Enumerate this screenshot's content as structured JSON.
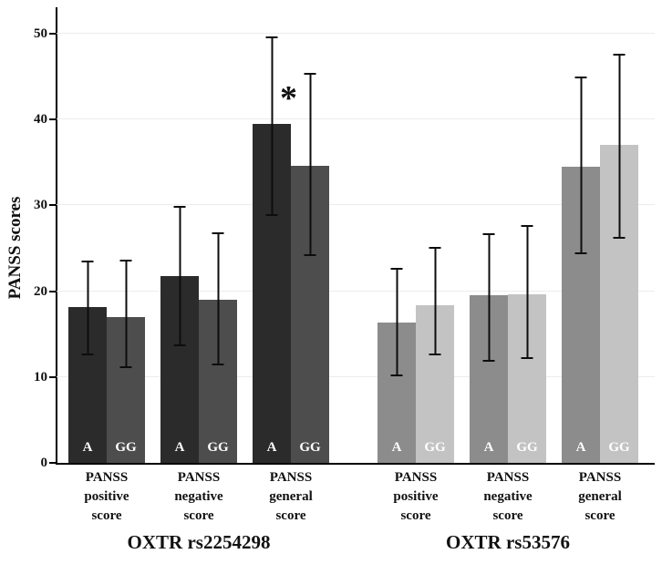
{
  "chart_data": {
    "type": "bar",
    "title": "",
    "ylabel": "PANSS scores",
    "ylim": [
      0,
      50
    ],
    "yticks": [
      0,
      10,
      20,
      30,
      40,
      50
    ],
    "grid": "faint-horizontal",
    "legend_position": "none",
    "bar_unit": "mean PANSS score with error bars, alleles labeled inside bars",
    "groups": [
      {
        "label": "OXTR rs2254298",
        "categories": [
          {
            "label": "PANSS positive score",
            "lines": [
              "PANSS",
              "positive",
              "score"
            ]
          },
          {
            "label": "PANSS negative score",
            "lines": [
              "PANSS",
              "negative",
              "score"
            ]
          },
          {
            "label": "PANSS general score",
            "lines": [
              "PANSS",
              "general",
              "score"
            ]
          }
        ],
        "series": [
          {
            "name": "A",
            "color": "#2b2b2b",
            "values": [
              18.2,
              21.8,
              39.5
            ],
            "err_low": [
              12.5,
              13.6,
              28.8
            ],
            "err_high": [
              23.6,
              29.9,
              49.7
            ]
          },
          {
            "name": "GG",
            "color": "#4d4d4d",
            "values": [
              17.0,
              19.0,
              34.6
            ],
            "err_low": [
              11.0,
              11.4,
              24.1
            ],
            "err_high": [
              23.7,
              26.9,
              45.4
            ]
          }
        ],
        "annotation": {
          "text": "*",
          "category_index": 2,
          "x_frac": 0.47,
          "y_value": 42.5
        }
      },
      {
        "label": "OXTR rs53576",
        "categories": [
          {
            "label": "PANSS positive score",
            "lines": [
              "PANSS",
              "positive",
              "score"
            ]
          },
          {
            "label": "PANSS negative score",
            "lines": [
              "PANSS",
              "negative",
              "score"
            ]
          },
          {
            "label": "PANSS general score",
            "lines": [
              "PANSS",
              "general",
              "score"
            ]
          }
        ],
        "series": [
          {
            "name": "A",
            "color": "#8c8c8c",
            "values": [
              16.3,
              19.5,
              34.5
            ],
            "err_low": [
              10.1,
              11.8,
              24.3
            ],
            "err_high": [
              22.7,
              26.8,
              45.0
            ]
          },
          {
            "name": "GG",
            "color": "#c3c3c3",
            "values": [
              18.4,
              19.6,
              37.0
            ],
            "err_low": [
              12.5,
              12.1,
              26.1
            ],
            "err_high": [
              25.2,
              27.7,
              47.7
            ]
          }
        ]
      }
    ]
  }
}
